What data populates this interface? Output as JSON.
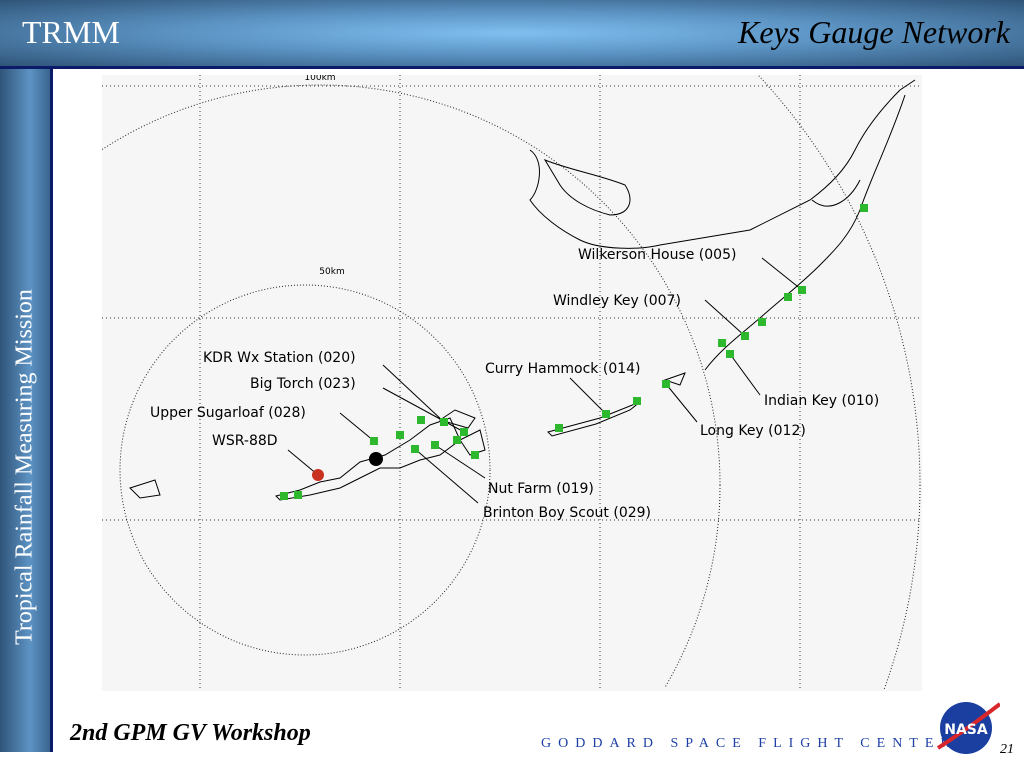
{
  "header": {
    "left_title": "TRMM",
    "right_title": "Keys Gauge Network"
  },
  "sidebar": {
    "vertical_title": "Tropical Rainfall Measuring Mission"
  },
  "map": {
    "range_rings": [
      "100km",
      "50km"
    ],
    "stations": [
      {
        "label": "Wilkerson House (005)"
      },
      {
        "label": "Windley Key (007)"
      },
      {
        "label": "Indian Key (010)"
      },
      {
        "label": "Long Key (012)"
      },
      {
        "label": "Curry Hammock (014)"
      },
      {
        "label": "KDR Wx Station (020)"
      },
      {
        "label": "Big Torch (023)"
      },
      {
        "label": "Upper Sugarloaf (028)"
      },
      {
        "label": "WSR-88D"
      },
      {
        "label": "Nut Farm (019)"
      },
      {
        "label": "Brinton Boy Scout (029)"
      }
    ],
    "colors": {
      "gauge": "#2db82d",
      "radar": "#c8321e",
      "site": "#000000"
    }
  },
  "footer": {
    "workshop": "2nd GPM GV Workshop",
    "center": "GODDARD SPACE FLIGHT CENTER",
    "page": "21",
    "logo_text": "NASA"
  }
}
